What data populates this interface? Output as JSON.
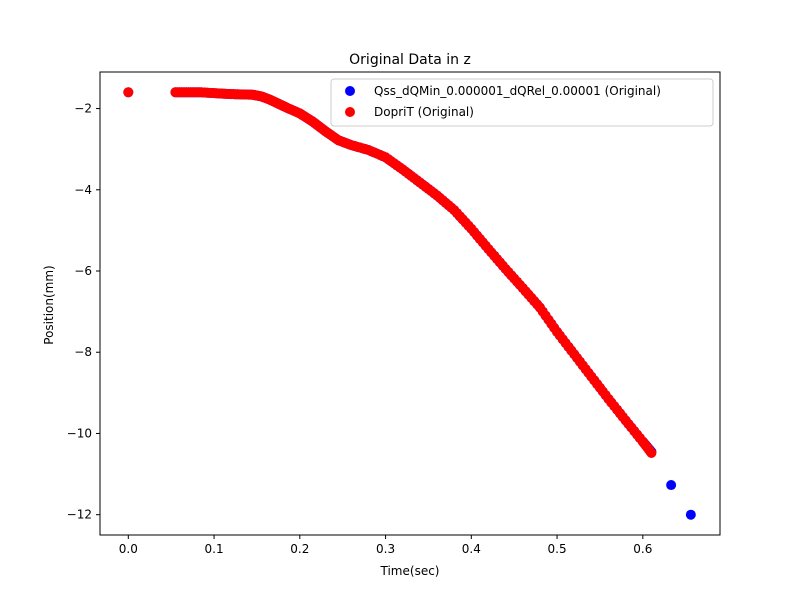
{
  "chart_data": {
    "type": "scatter",
    "title": "Original Data in z",
    "xlabel": "Time(sec)",
    "ylabel": "Position(mm)",
    "xlim": [
      -0.033,
      0.69
    ],
    "ylim": [
      -12.5,
      -1.1
    ],
    "xticks": [
      0.0,
      0.1,
      0.2,
      0.3,
      0.4,
      0.5,
      0.6
    ],
    "xtick_labels": [
      "0.0",
      "0.1",
      "0.2",
      "0.3",
      "0.4",
      "0.5",
      "0.6"
    ],
    "yticks": [
      -2,
      -4,
      -6,
      -8,
      -10,
      -12
    ],
    "ytick_labels": [
      "−2",
      "−4",
      "−6",
      "−8",
      "−10",
      "−12"
    ],
    "grid": false,
    "legend_position": "top-right",
    "series": [
      {
        "name": "Qss_dQMin_0.000001_dQRel_0.00001 (Original)",
        "color": "#0000ff",
        "x": [
          0.0,
          0.055,
          0.07,
          0.085,
          0.1,
          0.115,
          0.13,
          0.145,
          0.155,
          0.165,
          0.175,
          0.185,
          0.2,
          0.215,
          0.23,
          0.245,
          0.26,
          0.28,
          0.3,
          0.32,
          0.34,
          0.36,
          0.38,
          0.4,
          0.42,
          0.44,
          0.46,
          0.48,
          0.5,
          0.52,
          0.54,
          0.56,
          0.58,
          0.6,
          0.61,
          0.633,
          0.656
        ],
        "y": [
          -1.6,
          -1.6,
          -1.6,
          -1.6,
          -1.62,
          -1.64,
          -1.65,
          -1.66,
          -1.7,
          -1.78,
          -1.88,
          -1.98,
          -2.12,
          -2.32,
          -2.56,
          -2.78,
          -2.9,
          -3.02,
          -3.2,
          -3.5,
          -3.82,
          -4.14,
          -4.5,
          -4.96,
          -5.46,
          -5.95,
          -6.42,
          -6.9,
          -7.5,
          -8.05,
          -8.6,
          -9.15,
          -9.68,
          -10.2,
          -10.45,
          -11.27,
          -12.0
        ]
      },
      {
        "name": "DopriT (Original)",
        "color": "#ff0000",
        "x": [
          0.0,
          0.055,
          0.07,
          0.085,
          0.1,
          0.115,
          0.13,
          0.145,
          0.155,
          0.165,
          0.175,
          0.185,
          0.2,
          0.215,
          0.23,
          0.245,
          0.26,
          0.28,
          0.3,
          0.32,
          0.34,
          0.36,
          0.38,
          0.4,
          0.42,
          0.44,
          0.46,
          0.48,
          0.5,
          0.52,
          0.54,
          0.56,
          0.58,
          0.6,
          0.61
        ],
        "y": [
          -1.6,
          -1.6,
          -1.6,
          -1.6,
          -1.62,
          -1.64,
          -1.65,
          -1.66,
          -1.7,
          -1.78,
          -1.88,
          -1.98,
          -2.12,
          -2.32,
          -2.56,
          -2.78,
          -2.9,
          -3.02,
          -3.2,
          -3.5,
          -3.82,
          -4.14,
          -4.5,
          -4.96,
          -5.46,
          -5.95,
          -6.42,
          -6.9,
          -7.5,
          -8.05,
          -8.6,
          -9.15,
          -9.68,
          -10.2,
          -10.48
        ]
      }
    ]
  }
}
